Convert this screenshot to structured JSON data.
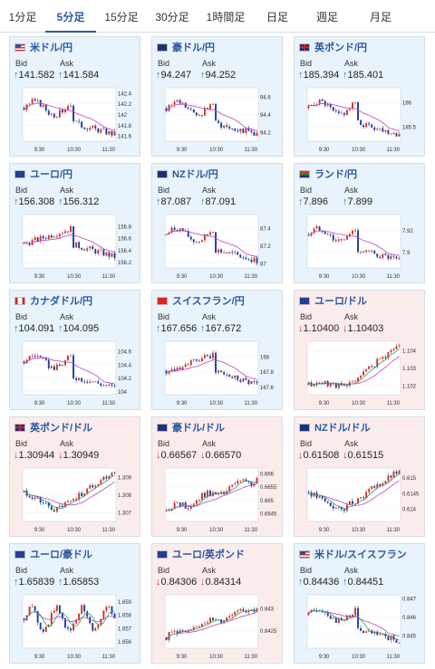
{
  "tabs": [
    {
      "label": "1分足",
      "active": false
    },
    {
      "label": "5分足",
      "active": true
    },
    {
      "label": "15分足",
      "active": false
    },
    {
      "label": "30分足",
      "active": false
    },
    {
      "label": "1時間足",
      "active": false
    },
    {
      "label": "日足",
      "active": false
    },
    {
      "label": "週足",
      "active": false
    },
    {
      "label": "月足",
      "active": false
    }
  ],
  "labels": {
    "bid": "Bid",
    "ask": "Ask"
  },
  "colors": {
    "up_arrow": "#2a79c5",
    "down_arrow": "#d0352b",
    "candle_up": "#d0352b",
    "candle_down": "#1f3f9c",
    "ma_line": "#c040c0",
    "ma_line2": "#30a060"
  },
  "pairs": [
    {
      "name": "米ドル/円",
      "flag": "us",
      "trend": "up",
      "bid": "141.582",
      "ask": "141.584"
    },
    {
      "name": "豪ドル/円",
      "flag": "au",
      "trend": "up",
      "bid": "94.247",
      "ask": "94.252"
    },
    {
      "name": "英ポンド/円",
      "flag": "gb",
      "trend": "up",
      "bid": "185.394",
      "ask": "185.401"
    },
    {
      "name": "ユーロ/円",
      "flag": "eu",
      "trend": "up",
      "bid": "156.308",
      "ask": "156.312"
    },
    {
      "name": "NZドル/円",
      "flag": "nz",
      "trend": "up",
      "bid": "87.087",
      "ask": "87.091"
    },
    {
      "name": "ランド/円",
      "flag": "za",
      "trend": "up",
      "bid": "7.896",
      "ask": "7.899"
    },
    {
      "name": "カナダドル/円",
      "flag": "ca",
      "trend": "up",
      "bid": "104.091",
      "ask": "104.095"
    },
    {
      "name": "スイスフラン/円",
      "flag": "ch",
      "trend": "up",
      "bid": "167.656",
      "ask": "167.672"
    },
    {
      "name": "ユーロ/ドル",
      "flag": "eu-us",
      "trend": "down",
      "bid": "1.10400",
      "ask": "1.10403"
    },
    {
      "name": "英ポンド/ドル",
      "flag": "gb-us",
      "trend": "down",
      "bid": "1.30944",
      "ask": "1.30949"
    },
    {
      "name": "豪ドル/ドル",
      "flag": "au-us",
      "trend": "down",
      "bid": "0.66567",
      "ask": "0.66570"
    },
    {
      "name": "NZドル/ドル",
      "flag": "nz-us",
      "trend": "down",
      "bid": "0.61508",
      "ask": "0.61515"
    },
    {
      "name": "ユーロ/豪ドル",
      "flag": "eu-au",
      "trend": "up",
      "bid": "1.65839",
      "ask": "1.65853"
    },
    {
      "name": "ユーロ/英ポンド",
      "flag": "eu-gb",
      "trend": "down",
      "bid": "0.84306",
      "ask": "0.84314"
    },
    {
      "name": "米ドル/スイスフラン",
      "flag": "us-ch",
      "trend": "up",
      "bid": "0.84436",
      "ask": "0.84451"
    }
  ],
  "chart_data": [
    {
      "type": "candlestick",
      "pair": "米ドル/円",
      "x_ticks": [
        "9:30",
        "10:30",
        "11:30"
      ],
      "y_ticks": [
        "142.4",
        "142.2",
        "142",
        "141.8",
        "141.6"
      ],
      "shape": "flat-drop",
      "ylim": [
        141.5,
        142.5
      ]
    },
    {
      "type": "candlestick",
      "pair": "豪ドル/円",
      "x_ticks": [
        "9:30",
        "10:30",
        "11:30"
      ],
      "y_ticks": [
        "94.6",
        "94.4",
        "94.2"
      ],
      "shape": "flat-drop",
      "ylim": [
        94.1,
        94.7
      ]
    },
    {
      "type": "candlestick",
      "pair": "英ポンド/円",
      "x_ticks": [
        "9:30",
        "10:30",
        "11:30"
      ],
      "y_ticks": [
        "186",
        "185.5"
      ],
      "shape": "flat-drop",
      "ylim": [
        185.2,
        186.3
      ]
    },
    {
      "type": "candlestick",
      "pair": "ユーロ/円",
      "x_ticks": [
        "9:30",
        "10:30",
        "11:30"
      ],
      "y_ticks": [
        "156.8",
        "156.6",
        "156.4",
        "156.2"
      ],
      "shape": "rise-drop",
      "ylim": [
        156.1,
        157.0
      ]
    },
    {
      "type": "candlestick",
      "pair": "NZドル/円",
      "x_ticks": [
        "9:30",
        "10:30",
        "11:30"
      ],
      "y_ticks": [
        "87.4",
        "87.2",
        "87"
      ],
      "shape": "flat-drop",
      "ylim": [
        86.95,
        87.55
      ]
    },
    {
      "type": "candlestick",
      "pair": "ランド/円",
      "x_ticks": [
        "9:30",
        "10:30",
        "11:30"
      ],
      "y_ticks": [
        "7.92",
        "7.9"
      ],
      "shape": "flat-drop",
      "ylim": [
        7.885,
        7.935
      ]
    },
    {
      "type": "candlestick",
      "pair": "カナダドル/円",
      "x_ticks": [
        "9:30",
        "10:30",
        "11:30"
      ],
      "y_ticks": [
        "104.6",
        "104.4",
        "104.2",
        "104"
      ],
      "shape": "flat-drop",
      "ylim": [
        103.95,
        104.75
      ]
    },
    {
      "type": "candlestick",
      "pair": "スイスフラン/円",
      "x_ticks": [
        "9:30",
        "10:30",
        "11:30"
      ],
      "y_ticks": [
        "168",
        "167.8",
        "167.6"
      ],
      "shape": "rise-drop",
      "ylim": [
        167.5,
        168.2
      ]
    },
    {
      "type": "candlestick",
      "pair": "ユーロ/ドル",
      "x_ticks": [
        "9:30",
        "10:30",
        "11:30"
      ],
      "y_ticks": [
        "1.104",
        "1.103",
        "1.102"
      ],
      "shape": "flat-rise",
      "ylim": [
        1.1015,
        1.1045
      ]
    },
    {
      "type": "candlestick",
      "pair": "英ポンド/ドル",
      "x_ticks": [
        "9:30",
        "10:30",
        "11:30"
      ],
      "y_ticks": [
        "1.309",
        "1.308",
        "1.307"
      ],
      "shape": "dip-rise",
      "ylim": [
        1.3065,
        1.3095
      ]
    },
    {
      "type": "candlestick",
      "pair": "豪ドル/ドル",
      "x_ticks": [
        "9:30",
        "10:30",
        "11:30"
      ],
      "y_ticks": [
        "0.666",
        "0.6655",
        "0.665",
        "0.6645"
      ],
      "shape": "steady-rise",
      "ylim": [
        0.6642,
        0.6662
      ]
    },
    {
      "type": "candlestick",
      "pair": "NZドル/ドル",
      "x_ticks": [
        "9:30",
        "10:30",
        "11:30"
      ],
      "y_ticks": [
        "0.615",
        "0.6145",
        "0.614"
      ],
      "shape": "dip-rise",
      "ylim": [
        0.6136,
        0.6153
      ]
    },
    {
      "type": "candlestick",
      "pair": "ユーロ/豪ドル",
      "x_ticks": [
        "9:30",
        "10:30",
        "11:30"
      ],
      "y_ticks": [
        "1.659",
        "1.658",
        "1.657",
        "1.656"
      ],
      "shape": "choppy-flat",
      "ylim": [
        1.6555,
        1.6595
      ]
    },
    {
      "type": "candlestick",
      "pair": "ユーロ/英ポンド",
      "x_ticks": [
        "9:30",
        "10:30",
        "11:30"
      ],
      "y_ticks": [
        "0.843",
        "0.8425"
      ],
      "shape": "steady-rise",
      "ylim": [
        0.8421,
        0.8433
      ]
    },
    {
      "type": "candlestick",
      "pair": "米ドル/スイスフラン",
      "x_ticks": [
        "9:30",
        "10:30",
        "11:30"
      ],
      "y_ticks": [
        "0.847",
        "0.846",
        "0.845"
      ],
      "shape": "flat-drop",
      "ylim": [
        0.8443,
        0.8472
      ]
    }
  ]
}
